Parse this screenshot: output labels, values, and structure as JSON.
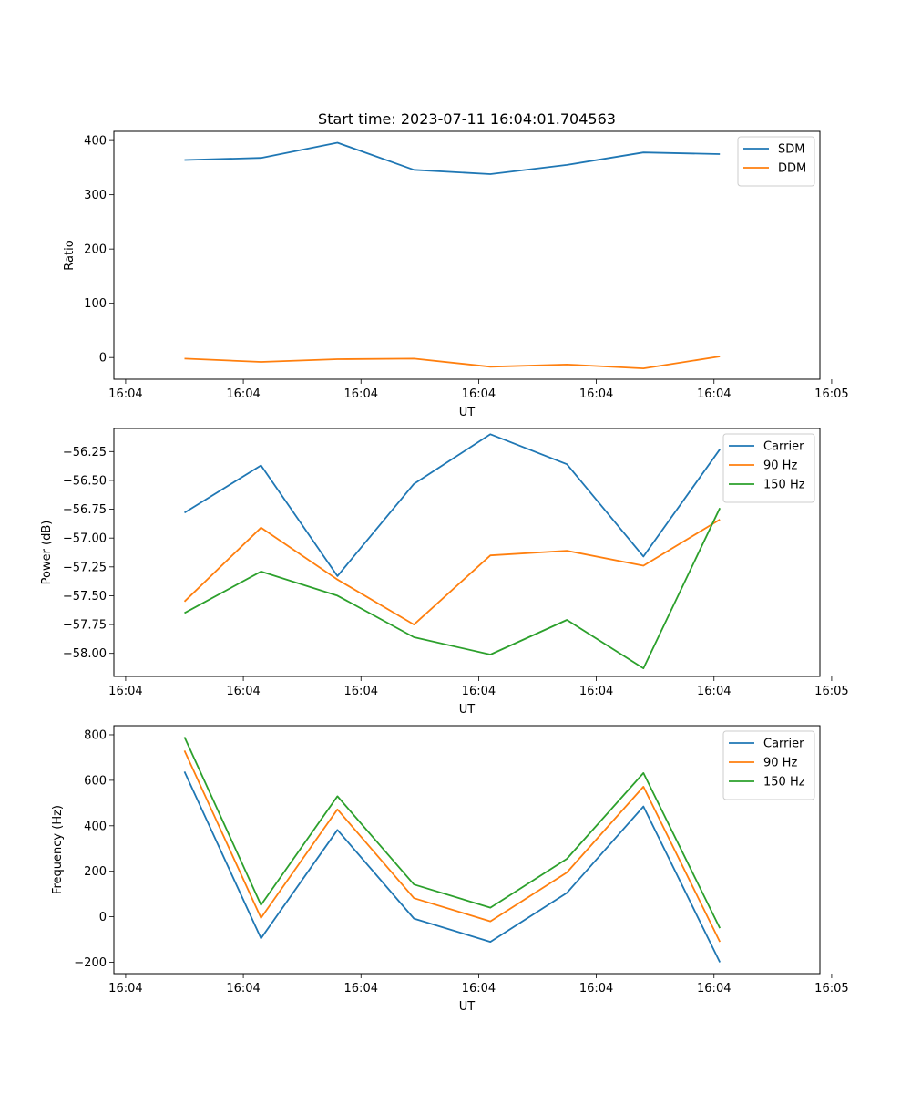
{
  "figure_title": "Start time: 2023-07-11 16:04:01.704563",
  "chart_data": [
    {
      "type": "line",
      "title": "Start time: 2023-07-11 16:04:01.704563",
      "xlabel": "UT",
      "ylabel": "Ratio",
      "x": [
        0.5,
        1.15,
        1.8,
        2.45,
        3.1,
        3.75,
        4.4,
        5.05
      ],
      "xlim": [
        -0.1,
        5.9
      ],
      "xticks": [
        0,
        1,
        2,
        3,
        4,
        5,
        6
      ],
      "xticklabels": [
        "16:04",
        "16:04",
        "16:04",
        "16:04",
        "16:04",
        "16:04",
        "16:05"
      ],
      "ylim": [
        -40,
        417
      ],
      "yticks": [
        0,
        100,
        200,
        300,
        400
      ],
      "yticklabels": [
        "0",
        "100",
        "200",
        "300",
        "400"
      ],
      "legend_location": "top-right",
      "series": [
        {
          "name": "SDM",
          "color": "#1f77b4",
          "values": [
            364,
            368,
            396,
            346,
            338,
            355,
            378,
            375
          ]
        },
        {
          "name": "DDM",
          "color": "#ff7f0e",
          "values": [
            -2,
            -8,
            -3,
            -2,
            -17,
            -13,
            -20,
            2
          ]
        }
      ]
    },
    {
      "type": "line",
      "title": "",
      "xlabel": "UT",
      "ylabel": "Power (dB)",
      "x": [
        0.5,
        1.15,
        1.8,
        2.45,
        3.1,
        3.75,
        4.4,
        5.05
      ],
      "xlim": [
        -0.1,
        5.9
      ],
      "xticks": [
        0,
        1,
        2,
        3,
        4,
        5,
        6
      ],
      "xticklabels": [
        "16:04",
        "16:04",
        "16:04",
        "16:04",
        "16:04",
        "16:04",
        "16:05"
      ],
      "ylim": [
        -58.2,
        -56.05
      ],
      "yticks": [
        -58.0,
        -57.75,
        -57.5,
        -57.25,
        -57.0,
        -56.75,
        -56.5,
        -56.25
      ],
      "yticklabels": [
        "−58.00",
        "−57.75",
        "−57.50",
        "−57.25",
        "−57.00",
        "−56.75",
        "−56.50",
        "−56.25"
      ],
      "legend_location": "top-right",
      "series": [
        {
          "name": "Carrier",
          "color": "#1f77b4",
          "values": [
            -56.78,
            -56.37,
            -57.33,
            -56.53,
            -56.1,
            -56.36,
            -57.16,
            -56.23
          ]
        },
        {
          "name": "90 Hz",
          "color": "#ff7f0e",
          "values": [
            -57.55,
            -56.91,
            -57.36,
            -57.75,
            -57.15,
            -57.11,
            -57.24,
            -56.84
          ]
        },
        {
          "name": "150 Hz",
          "color": "#2ca02c",
          "values": [
            -57.65,
            -57.29,
            -57.5,
            -57.86,
            -58.01,
            -57.71,
            -58.13,
            -56.74
          ]
        }
      ]
    },
    {
      "type": "line",
      "title": "",
      "xlabel": "UT",
      "ylabel": "Frequency (Hz)",
      "x": [
        0.5,
        1.15,
        1.8,
        2.45,
        3.1,
        3.75,
        4.4,
        5.05
      ],
      "xlim": [
        -0.1,
        5.9
      ],
      "xticks": [
        0,
        1,
        2,
        3,
        4,
        5,
        6
      ],
      "xticklabels": [
        "16:04",
        "16:04",
        "16:04",
        "16:04",
        "16:04",
        "16:04",
        "16:05"
      ],
      "ylim": [
        -250,
        840
      ],
      "yticks": [
        -200,
        0,
        200,
        400,
        600,
        800
      ],
      "yticklabels": [
        "−200",
        "0",
        "200",
        "400",
        "600",
        "800"
      ],
      "legend_location": "top-right",
      "series": [
        {
          "name": "Carrier",
          "color": "#1f77b4",
          "values": [
            638,
            -95,
            382,
            -8,
            -110,
            105,
            485,
            -200
          ]
        },
        {
          "name": "90 Hz",
          "color": "#ff7f0e",
          "values": [
            730,
            -5,
            472,
            82,
            -20,
            195,
            572,
            -110
          ]
        },
        {
          "name": "150 Hz",
          "color": "#2ca02c",
          "values": [
            790,
            52,
            530,
            142,
            40,
            255,
            632,
            -50
          ]
        }
      ]
    }
  ]
}
